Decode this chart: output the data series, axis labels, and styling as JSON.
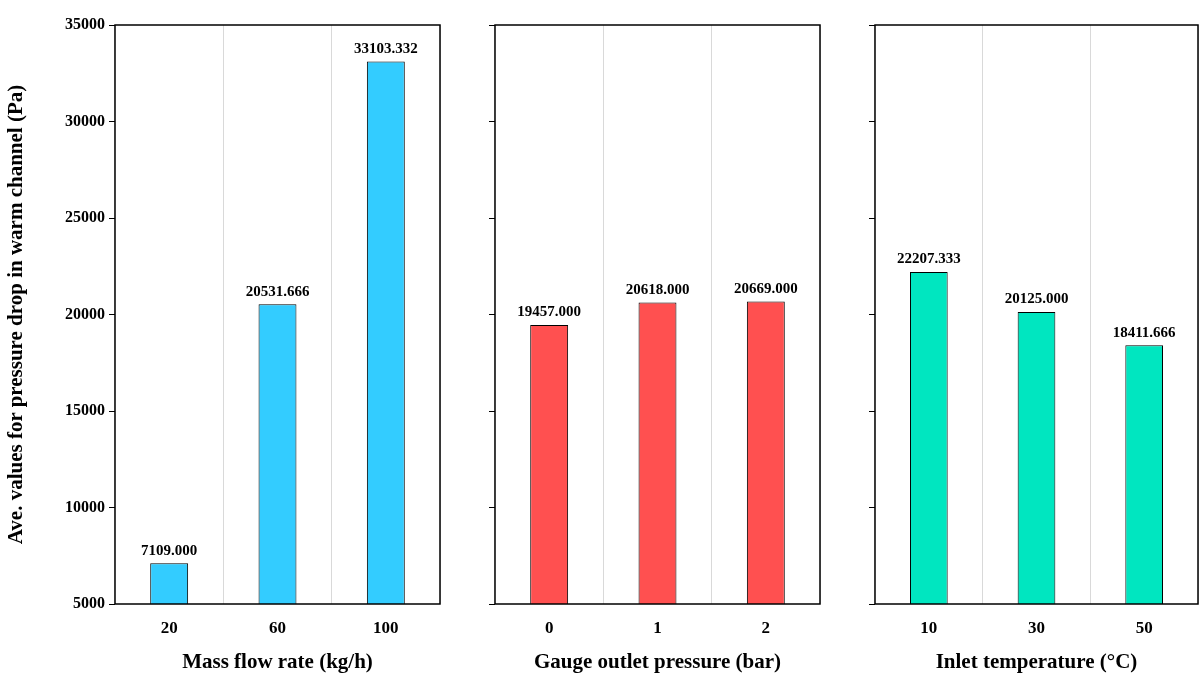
{
  "chart_data": [
    {
      "type": "bar",
      "xlabel": "Mass flow rate (kg/h)",
      "ylabel": "Ave. values for pressure drop in warm channel (Pa)",
      "categories": [
        "20",
        "60",
        "100"
      ],
      "values": [
        7109.0,
        20531.666,
        33103.332
      ],
      "value_labels": [
        "7109.000",
        "20531.666",
        "33103.332"
      ],
      "color": "#33ccff",
      "ylim": [
        5000,
        35000
      ],
      "yticks": [
        5000,
        10000,
        15000,
        20000,
        25000,
        30000,
        35000
      ],
      "grid": "x",
      "legend": false
    },
    {
      "type": "bar",
      "xlabel": "Gauge outlet pressure (bar)",
      "categories": [
        "0",
        "1",
        "2"
      ],
      "values": [
        19457.0,
        20618.0,
        20669.0
      ],
      "value_labels": [
        "19457.000",
        "20618.000",
        "20669.000"
      ],
      "color": "#ff5050",
      "ylim": [
        5000,
        35000
      ],
      "yticks": [
        5000,
        10000,
        15000,
        20000,
        25000,
        30000,
        35000
      ],
      "grid": "x",
      "legend": false,
      "tick_labels": "x"
    },
    {
      "type": "bar",
      "xlabel": "Inlet temperature (°C)",
      "categories": [
        "10",
        "30",
        "50"
      ],
      "values": [
        22207.333,
        20125.0,
        18411.666
      ],
      "value_labels": [
        "22207.333",
        "20125.000",
        "18411.666"
      ],
      "color": "#00e6c0",
      "ylim": [
        5000,
        35000
      ],
      "yticks": [
        5000,
        10000,
        15000,
        20000,
        25000,
        30000,
        35000
      ],
      "grid": "x",
      "legend": false,
      "tick_labels": "x"
    }
  ]
}
